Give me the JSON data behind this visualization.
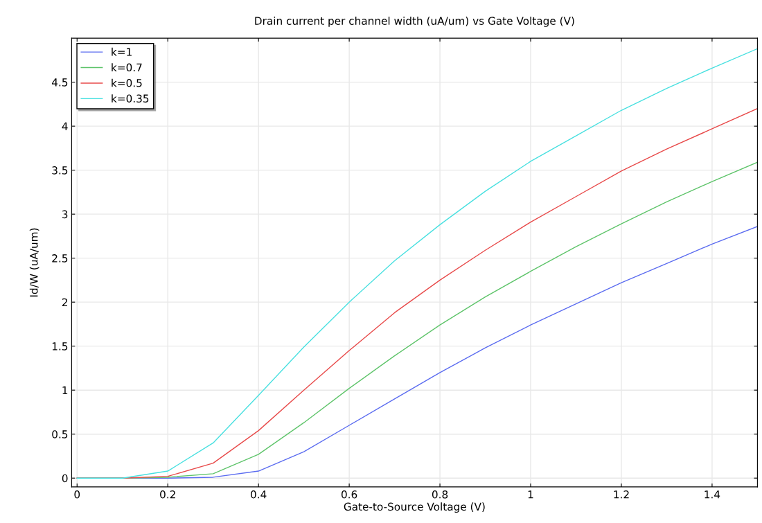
{
  "chart_data": {
    "type": "line",
    "title": "Drain current per channel width (uA/um) vs Gate Voltage (V)",
    "xlabel": "Gate-to-Source Voltage (V)",
    "ylabel": "Id/W (uA/um)",
    "x": [
      0,
      0.1,
      0.2,
      0.3,
      0.4,
      0.5,
      0.6,
      0.7,
      0.8,
      0.9,
      1.0,
      1.1,
      1.2,
      1.3,
      1.4,
      1.5
    ],
    "series": [
      {
        "name": "k=1",
        "color": "#5b6cf0",
        "values": [
          0,
          0,
          0,
          0.01,
          0.08,
          0.3,
          0.6,
          0.9,
          1.2,
          1.48,
          1.74,
          1.98,
          2.22,
          2.44,
          2.66,
          2.86
        ]
      },
      {
        "name": "k=0.7",
        "color": "#5ec46a",
        "values": [
          0,
          0,
          0.01,
          0.05,
          0.27,
          0.63,
          1.02,
          1.39,
          1.74,
          2.06,
          2.35,
          2.63,
          2.89,
          3.14,
          3.37,
          3.59
        ]
      },
      {
        "name": "k=0.5",
        "color": "#e84a4a",
        "values": [
          0,
          0,
          0.02,
          0.17,
          0.54,
          1.0,
          1.45,
          1.88,
          2.25,
          2.59,
          2.91,
          3.2,
          3.49,
          3.74,
          3.97,
          4.2
        ]
      },
      {
        "name": "k=0.35",
        "color": "#48e0e0",
        "values": [
          0,
          0,
          0.08,
          0.4,
          0.94,
          1.49,
          2.0,
          2.47,
          2.88,
          3.26,
          3.6,
          3.89,
          4.18,
          4.43,
          4.66,
          4.88
        ]
      }
    ],
    "xlim": [
      -0.012,
      1.5
    ],
    "ylim": [
      -0.1,
      5.0
    ],
    "xticks": [
      0,
      0.2,
      0.4,
      0.6,
      0.8,
      1,
      1.2,
      1.4
    ],
    "yticks": [
      0,
      0.5,
      1,
      1.5,
      2,
      2.5,
      3,
      3.5,
      4,
      4.5
    ],
    "grid": true,
    "legend": "top left",
    "marker": "none",
    "line_style": "solid"
  }
}
